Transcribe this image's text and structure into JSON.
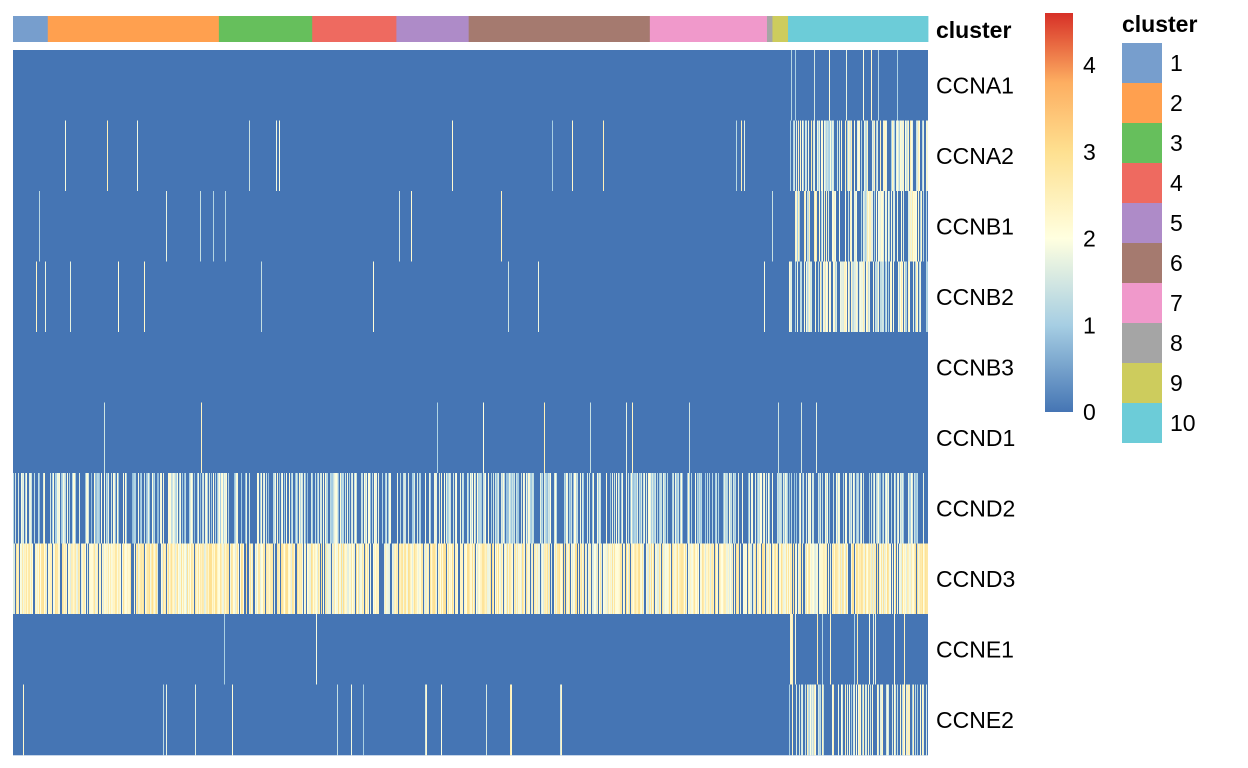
{
  "chart_data": {
    "type": "heatmap",
    "title": "",
    "annotation_label": "cluster",
    "genes": [
      "CCNA1",
      "CCNA2",
      "CCNB1",
      "CCNB2",
      "CCNB3",
      "CCND1",
      "CCND2",
      "CCND3",
      "CCNE1",
      "CCNE2"
    ],
    "cluster_order": [
      "1",
      "2",
      "3",
      "4",
      "5",
      "6",
      "7",
      "8",
      "9",
      "10"
    ],
    "cluster_colors": [
      "#779ECD",
      "#FFA04F",
      "#66BF5C",
      "#EE6A60",
      "#AE8BC8",
      "#A57A6F",
      "#F099CB",
      "#A5A5A5",
      "#CDCC5D",
      "#6CCCD8"
    ],
    "cluster_cell_fraction": [
      0.038,
      0.187,
      0.102,
      0.092,
      0.079,
      0.198,
      0.128,
      0.006,
      0.017,
      0.153
    ],
    "color_scale": {
      "min": 0,
      "max": 4.6,
      "ticks": [
        "0",
        "1",
        "2",
        "3",
        "4"
      ],
      "stops": [
        {
          "value": 0,
          "color": "#4575B4"
        },
        {
          "value": 1,
          "color": "#A6CEE3"
        },
        {
          "value": 2,
          "color": "#FFFFE0"
        },
        {
          "value": 3,
          "color": "#FEE090"
        },
        {
          "value": 3.8,
          "color": "#FDAE61"
        },
        {
          "value": 4.6,
          "color": "#D73027"
        }
      ]
    },
    "legend": {
      "title": "cluster",
      "placement": "right",
      "entries": [
        "1",
        "2",
        "3",
        "4",
        "5",
        "6",
        "7",
        "8",
        "9",
        "10"
      ]
    },
    "expression_pattern": {
      "CCNA1": {
        "base_rate": 0.0,
        "cluster10_rate": 0.05
      },
      "CCNA2": {
        "base_rate": 0.01,
        "cluster10_rate": 0.6
      },
      "CCNB1": {
        "base_rate": 0.01,
        "cluster10_rate": 0.55
      },
      "CCNB2": {
        "base_rate": 0.02,
        "cluster10_rate": 0.6
      },
      "CCNB3": {
        "base_rate": 0.0,
        "cluster10_rate": 0.0
      },
      "CCND1": {
        "base_rate": 0.008,
        "cluster10_rate": 0.01
      },
      "CCND2": {
        "base_rate": 0.55,
        "cluster10_rate": 0.5
      },
      "CCND3": {
        "base_rate": 0.85,
        "cluster10_rate": 0.85
      },
      "CCNE1": {
        "base_rate": 0.003,
        "cluster10_rate": 0.15
      },
      "CCNE2": {
        "base_rate": 0.01,
        "cluster10_rate": 0.5
      }
    }
  }
}
